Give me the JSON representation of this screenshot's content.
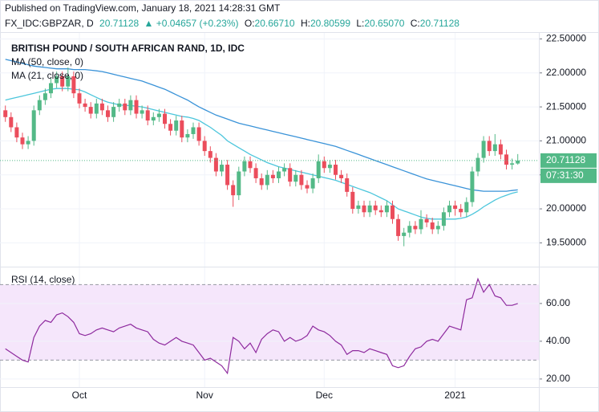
{
  "header": {
    "published": "Published on TradingView.com, January 18, 2021 14:28:31 GMT",
    "symbol": "FX_IDC:GBPZAR, D",
    "change": "▲ +0.04657 (+0.23%)",
    "ohlc_labels": [
      "O:",
      "H:",
      "L:",
      "C:"
    ],
    "ohlc_values": [
      "20.66710",
      "20.80599",
      "20.65070",
      "20.71128"
    ]
  },
  "chart_data": [
    {
      "type": "candlestick",
      "title": "BRITISH POUND / SOUTH AFRICAN RAND, 1D, IDC",
      "categories": [
        null,
        null,
        null,
        null,
        null,
        null,
        null,
        null,
        null,
        null,
        null,
        null,
        null,
        "Oct",
        null,
        null,
        null,
        null,
        null,
        null,
        null,
        null,
        null,
        null,
        null,
        null,
        null,
        null,
        null,
        null,
        null,
        null,
        null,
        null,
        null,
        "Nov",
        null,
        null,
        null,
        null,
        null,
        null,
        null,
        null,
        null,
        null,
        null,
        null,
        null,
        null,
        null,
        null,
        null,
        null,
        null,
        null,
        "Dec",
        null,
        null,
        null,
        null,
        null,
        null,
        null,
        null,
        null,
        null,
        null,
        null,
        null,
        null,
        null,
        null,
        null,
        null,
        null,
        null,
        null,
        null,
        "2021",
        null,
        null,
        null,
        null,
        null,
        null,
        null,
        null,
        null,
        null,
        null
      ],
      "open": [
        21.45,
        21.35,
        21.2,
        21.05,
        20.95,
        21.0,
        21.45,
        21.6,
        21.7,
        21.85,
        21.95,
        21.8,
        21.95,
        21.7,
        21.55,
        21.5,
        21.4,
        21.55,
        21.45,
        21.35,
        21.5,
        21.55,
        21.45,
        21.6,
        21.4,
        21.45,
        21.3,
        21.35,
        21.4,
        21.25,
        21.15,
        21.3,
        21.05,
        21.1,
        21.2,
        21.0,
        20.85,
        20.75,
        20.55,
        20.65,
        20.35,
        20.2,
        20.55,
        20.7,
        20.6,
        20.45,
        20.35,
        20.5,
        20.45,
        20.55,
        20.6,
        20.4,
        20.5,
        20.35,
        20.3,
        20.45,
        20.7,
        20.6,
        20.65,
        20.5,
        20.45,
        20.25,
        20.0,
        20.05,
        19.95,
        20.05,
        19.98,
        19.95,
        20.05,
        19.85,
        19.6,
        19.65,
        19.75,
        19.7,
        19.85,
        19.8,
        19.7,
        19.75,
        19.95,
        20.05,
        20.0,
        19.95,
        20.1,
        20.55,
        20.75,
        21.0,
        20.85,
        20.95,
        20.8,
        20.65,
        20.6671
      ],
      "high": [
        21.52,
        21.42,
        21.27,
        21.12,
        21.07,
        21.52,
        21.67,
        21.77,
        21.92,
        22.02,
        22.02,
        22.08,
        22.02,
        21.77,
        21.62,
        21.57,
        21.62,
        21.62,
        21.52,
        21.57,
        21.62,
        21.62,
        21.67,
        21.67,
        21.52,
        21.52,
        21.42,
        21.47,
        21.47,
        21.32,
        21.37,
        21.37,
        21.17,
        21.27,
        21.27,
        21.07,
        20.92,
        20.82,
        20.72,
        20.72,
        20.42,
        20.62,
        20.77,
        20.77,
        20.67,
        20.52,
        20.57,
        20.57,
        20.62,
        20.67,
        20.67,
        20.57,
        20.57,
        20.42,
        20.52,
        20.8,
        20.77,
        20.72,
        20.72,
        20.57,
        20.52,
        20.32,
        20.12,
        20.12,
        20.12,
        20.12,
        20.05,
        20.12,
        20.12,
        19.92,
        19.72,
        19.82,
        19.82,
        19.98,
        19.92,
        19.87,
        19.82,
        20.02,
        20.12,
        20.12,
        20.07,
        20.17,
        20.62,
        20.82,
        21.07,
        21.07,
        21.1,
        21.02,
        20.87,
        20.74,
        20.80599
      ],
      "low": [
        21.28,
        21.13,
        20.98,
        20.88,
        20.88,
        20.93,
        21.38,
        21.53,
        21.63,
        21.78,
        21.73,
        21.73,
        21.63,
        21.48,
        21.43,
        21.33,
        21.33,
        21.38,
        21.28,
        21.28,
        21.43,
        21.38,
        21.38,
        21.33,
        21.33,
        21.23,
        21.23,
        21.28,
        21.18,
        21.08,
        21.08,
        20.98,
        20.98,
        21.03,
        20.93,
        20.78,
        20.68,
        20.48,
        20.48,
        20.28,
        20.03,
        20.13,
        20.48,
        20.53,
        20.38,
        20.28,
        20.28,
        20.38,
        20.38,
        20.48,
        20.33,
        20.33,
        20.28,
        20.23,
        20.23,
        20.38,
        20.53,
        20.53,
        20.43,
        20.38,
        20.18,
        19.93,
        19.93,
        19.88,
        19.88,
        19.91,
        19.88,
        19.88,
        19.78,
        19.53,
        19.45,
        19.58,
        19.63,
        19.63,
        19.73,
        19.63,
        19.63,
        19.68,
        19.88,
        19.9,
        19.88,
        19.88,
        20.03,
        20.48,
        20.68,
        20.78,
        20.78,
        20.73,
        20.58,
        20.58,
        20.6507
      ],
      "close": [
        21.35,
        21.2,
        21.05,
        20.95,
        21.0,
        21.45,
        21.6,
        21.7,
        21.85,
        21.95,
        21.8,
        21.95,
        21.7,
        21.55,
        21.5,
        21.4,
        21.55,
        21.45,
        21.35,
        21.5,
        21.55,
        21.45,
        21.6,
        21.4,
        21.45,
        21.3,
        21.35,
        21.4,
        21.25,
        21.15,
        21.3,
        21.05,
        21.1,
        21.2,
        21.0,
        20.85,
        20.75,
        20.55,
        20.65,
        20.35,
        20.2,
        20.55,
        20.7,
        20.6,
        20.45,
        20.35,
        20.5,
        20.45,
        20.55,
        20.6,
        20.4,
        20.5,
        20.35,
        20.3,
        20.45,
        20.7,
        20.6,
        20.65,
        20.5,
        20.45,
        20.25,
        20.0,
        20.05,
        19.95,
        20.05,
        19.98,
        19.95,
        20.05,
        19.85,
        19.6,
        19.65,
        19.75,
        19.7,
        19.85,
        19.8,
        19.7,
        19.75,
        19.95,
        20.05,
        20.0,
        19.95,
        20.1,
        20.55,
        20.75,
        21.0,
        20.85,
        20.95,
        20.8,
        20.65,
        20.67,
        20.71128
      ],
      "up_color": "#53b987",
      "down_color": "#eb4d5c",
      "series": [
        {
          "name": "MA (50, close, 0)",
          "color": "#3a93d8",
          "values": [
            22.2,
            22.18,
            22.16,
            22.14,
            22.12,
            22.1,
            22.09,
            22.08,
            22.07,
            22.06,
            22.06,
            22.06,
            22.05,
            22.05,
            22.05,
            22.04,
            22.03,
            22.02,
            22.0,
            21.98,
            21.96,
            21.94,
            21.92,
            21.9,
            21.88,
            21.85,
            21.82,
            21.79,
            21.76,
            21.72,
            21.68,
            21.64,
            21.6,
            21.55,
            21.5,
            21.46,
            21.42,
            21.38,
            21.35,
            21.32,
            21.29,
            21.26,
            21.24,
            21.22,
            21.2,
            21.18,
            21.16,
            21.14,
            21.12,
            21.1,
            21.08,
            21.06,
            21.04,
            21.02,
            21.0,
            20.98,
            20.96,
            20.94,
            20.92,
            20.89,
            20.86,
            20.83,
            20.8,
            20.77,
            20.74,
            20.71,
            20.68,
            20.65,
            20.62,
            20.59,
            20.56,
            20.53,
            20.5,
            20.47,
            20.44,
            20.42,
            20.4,
            20.38,
            20.36,
            20.34,
            20.32,
            20.3,
            20.28,
            20.27,
            20.26,
            20.26,
            20.26,
            20.26,
            20.26,
            20.27,
            20.28
          ]
        },
        {
          "name": "MA (21, close, 0)",
          "color": "#4cc6dc",
          "values": [
            21.6,
            21.62,
            21.64,
            21.66,
            21.68,
            21.7,
            21.72,
            21.74,
            21.76,
            21.77,
            21.77,
            21.77,
            21.76,
            21.75,
            21.72,
            21.68,
            21.64,
            21.6,
            21.57,
            21.55,
            21.53,
            21.52,
            21.52,
            21.51,
            21.5,
            21.48,
            21.46,
            21.44,
            21.42,
            21.4,
            21.38,
            21.36,
            21.35,
            21.33,
            21.3,
            21.25,
            21.2,
            21.14,
            21.08,
            21.0,
            20.95,
            20.9,
            20.85,
            20.8,
            20.76,
            20.72,
            20.68,
            20.65,
            20.62,
            20.6,
            20.58,
            20.56,
            20.54,
            20.52,
            20.5,
            20.48,
            20.46,
            20.44,
            20.42,
            20.39,
            20.36,
            20.33,
            20.3,
            20.27,
            20.24,
            20.2,
            20.16,
            20.12,
            20.06,
            20.0,
            19.97,
            19.94,
            19.91,
            19.88,
            19.86,
            19.85,
            19.85,
            19.85,
            19.85,
            19.85,
            19.86,
            19.88,
            19.92,
            19.97,
            20.03,
            20.08,
            20.13,
            20.17,
            20.2,
            20.23,
            20.25
          ]
        }
      ],
      "ylim": [
        19.15,
        22.6
      ],
      "yticks": [
        {
          "value": 19.5,
          "label": "19.50000"
        },
        {
          "value": 20,
          "label": "20.00000"
        },
        {
          "value": 20.5,
          "label": "20.50000"
        },
        {
          "value": 21,
          "label": "21.00000"
        },
        {
          "value": 21.5,
          "label": "21.50000"
        },
        {
          "value": 22,
          "label": "22.00000"
        },
        {
          "value": 22.5,
          "label": "22.50000"
        }
      ],
      "grid": true,
      "countdown": "07:31:30"
    },
    {
      "type": "line",
      "title": "RSI (14, close)",
      "color": "#8e2a9e",
      "values": [
        36,
        34,
        32,
        30,
        29,
        42,
        48,
        51,
        50,
        54,
        55,
        53,
        50,
        44,
        43,
        44,
        46,
        47,
        46,
        45,
        47,
        48,
        49,
        47,
        46,
        45,
        41,
        39,
        38,
        40,
        42,
        40,
        39,
        38,
        34,
        30,
        31,
        29,
        27,
        23,
        42,
        40,
        36,
        39,
        34,
        41,
        44,
        46,
        45,
        40,
        42,
        40,
        41,
        43,
        48,
        46,
        45,
        43,
        40,
        38,
        33,
        35,
        35,
        34,
        36,
        35,
        34,
        33,
        27,
        26,
        27,
        32,
        36,
        37,
        40,
        41,
        40,
        44,
        48,
        47,
        46,
        62,
        63,
        73,
        66,
        70,
        64,
        63,
        59,
        59,
        60
      ],
      "ylim": [
        15.7,
        79.1
      ],
      "band": [
        30,
        70
      ],
      "band_color": "#f5e6fb",
      "yticks": [
        {
          "value": 20,
          "label": "20.00"
        },
        {
          "value": 40,
          "label": "40.00"
        },
        {
          "value": 60,
          "label": "60.00"
        }
      ],
      "grid": true
    }
  ]
}
